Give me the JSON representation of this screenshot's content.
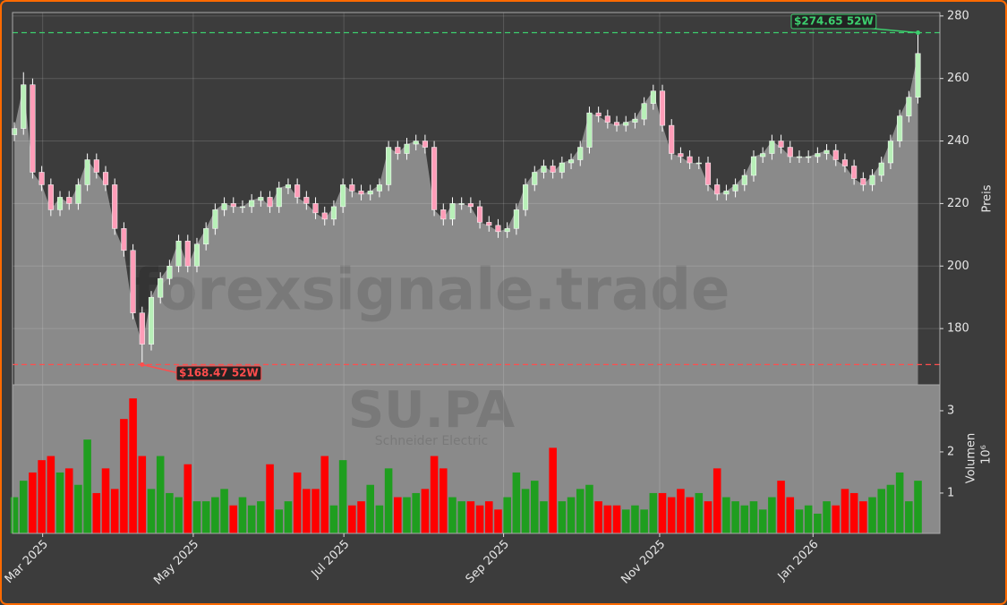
{
  "chart_data": {
    "type": "candlestick",
    "watermark": "forexsignale.trade",
    "symbol": "SU.PA",
    "company": "Schneider Electric",
    "ylabel": "Preis",
    "y2label": "Volumen",
    "y2unit": "10⁶",
    "up_color": "#1f9e1f",
    "down_color": "#ff0000",
    "grid": true,
    "open": [
      242,
      244,
      258,
      230,
      226,
      218,
      222,
      220,
      226,
      234,
      230,
      226,
      212,
      205,
      185,
      175,
      190,
      196,
      200,
      208,
      200,
      207,
      212,
      218,
      220,
      219,
      219,
      221,
      222,
      219,
      225,
      226,
      222,
      220,
      217,
      215,
      219,
      226,
      224,
      223,
      224,
      226,
      238,
      236,
      239,
      240,
      238,
      218,
      215,
      220,
      220,
      219,
      214,
      213,
      211,
      212,
      218,
      226,
      230,
      232,
      230,
      233,
      234,
      238,
      249,
      248,
      246,
      245,
      246,
      247,
      252,
      256,
      245,
      236,
      235,
      233,
      233,
      226,
      223,
      224,
      226,
      229,
      235,
      236,
      240,
      238,
      235,
      235,
      235,
      236,
      237,
      234,
      232,
      228,
      226,
      229,
      233,
      240,
      248,
      254
    ],
    "high": [
      246,
      262,
      260,
      232,
      228,
      224,
      224,
      228,
      236,
      236,
      232,
      228,
      214,
      207,
      187,
      192,
      198,
      202,
      210,
      210,
      209,
      214,
      220,
      222,
      222,
      221,
      223,
      224,
      224,
      227,
      228,
      228,
      224,
      222,
      219,
      221,
      228,
      228,
      226,
      226,
      228,
      240,
      240,
      241,
      242,
      242,
      240,
      220,
      222,
      222,
      222,
      221,
      216,
      215,
      214,
      220,
      228,
      232,
      234,
      234,
      235,
      236,
      240,
      251,
      251,
      250,
      248,
      248,
      249,
      254,
      258,
      258,
      247,
      238,
      237,
      235,
      235,
      228,
      226,
      228,
      231,
      237,
      238,
      242,
      242,
      240,
      237,
      237,
      238,
      239,
      239,
      236,
      234,
      230,
      231,
      235,
      242,
      250,
      256,
      274.65
    ],
    "low": [
      240,
      242,
      228,
      224,
      216,
      216,
      218,
      218,
      224,
      228,
      224,
      210,
      203,
      183,
      168.47,
      173,
      188,
      194,
      198,
      198,
      198,
      205,
      210,
      216,
      217,
      217,
      217,
      219,
      217,
      217,
      223,
      220,
      218,
      215,
      213,
      213,
      217,
      222,
      221,
      221,
      222,
      224,
      234,
      234,
      237,
      236,
      216,
      213,
      213,
      218,
      217,
      212,
      211,
      209,
      209,
      210,
      216,
      224,
      228,
      228,
      228,
      231,
      232,
      236,
      246,
      244,
      243,
      243,
      244,
      245,
      250,
      243,
      234,
      233,
      231,
      231,
      224,
      221,
      221,
      222,
      224,
      227,
      233,
      234,
      236,
      233,
      233,
      233,
      233,
      234,
      232,
      230,
      226,
      224,
      224,
      227,
      231,
      238,
      246,
      252
    ],
    "close": [
      244,
      258,
      230,
      226,
      218,
      222,
      220,
      226,
      234,
      230,
      226,
      212,
      205,
      185,
      175,
      190,
      196,
      200,
      208,
      200,
      207,
      212,
      218,
      220,
      219,
      219,
      221,
      222,
      219,
      225,
      226,
      222,
      220,
      217,
      215,
      219,
      226,
      224,
      223,
      224,
      226,
      238,
      236,
      239,
      240,
      238,
      218,
      215,
      220,
      220,
      219,
      214,
      213,
      211,
      212,
      218,
      226,
      230,
      232,
      230,
      233,
      234,
      238,
      249,
      248,
      246,
      245,
      246,
      247,
      252,
      256,
      245,
      236,
      235,
      233,
      233,
      226,
      223,
      224,
      226,
      229,
      235,
      236,
      240,
      238,
      235,
      235,
      235,
      236,
      237,
      234,
      232,
      228,
      226,
      229,
      233,
      240,
      248,
      254,
      268
    ],
    "volume": [
      0.9,
      1.3,
      1.5,
      1.8,
      1.9,
      1.5,
      1.6,
      1.2,
      2.3,
      1.0,
      1.6,
      1.1,
      2.8,
      3.3,
      1.9,
      1.1,
      1.9,
      1.0,
      0.9,
      1.7,
      0.8,
      0.8,
      0.9,
      1.1,
      0.7,
      0.9,
      0.7,
      0.8,
      1.7,
      0.6,
      0.8,
      1.5,
      1.1,
      1.1,
      1.9,
      0.7,
      1.8,
      0.7,
      0.8,
      1.2,
      0.7,
      1.6,
      0.9,
      0.9,
      1.0,
      1.1,
      1.9,
      1.6,
      0.9,
      0.8,
      0.8,
      0.7,
      0.8,
      0.6,
      0.9,
      1.5,
      1.1,
      1.3,
      0.8,
      2.1,
      0.8,
      0.9,
      1.1,
      1.2,
      0.8,
      0.7,
      0.7,
      0.6,
      0.7,
      0.6,
      1.0,
      1.0,
      0.9,
      1.1,
      0.9,
      1.0,
      0.8,
      1.6,
      0.9,
      0.8,
      0.7,
      0.8,
      0.6,
      0.9,
      1.3,
      0.9,
      0.6,
      0.7,
      0.5,
      0.8,
      0.7,
      1.1,
      1.0,
      0.8,
      0.9,
      1.1,
      1.2,
      1.5,
      0.8,
      1.3
    ],
    "xlim": [
      -0.2,
      101.4
    ],
    "xticks": [
      {
        "value": 3.1,
        "label": "Mar 2025"
      },
      {
        "value": 19.6,
        "label": "May 2025"
      },
      {
        "value": 36.1,
        "label": "Jul 2025"
      },
      {
        "value": 53.6,
        "label": "Sep 2025"
      },
      {
        "value": 70.7,
        "label": "Nov 2025"
      },
      {
        "value": 87.5,
        "label": "Jan 2026"
      }
    ],
    "ylim": [
      162,
      281.1
    ],
    "yticks": [
      180,
      200,
      220,
      240,
      260,
      280
    ],
    "y2lim": [
      0.02,
      3.63
    ],
    "y2ticks": [
      1,
      2,
      3
    ],
    "high_52w": {
      "value": 274.65,
      "label": "$274.65 52W"
    },
    "low_52w": {
      "value": 168.47,
      "label": "$168.47 52W"
    }
  }
}
